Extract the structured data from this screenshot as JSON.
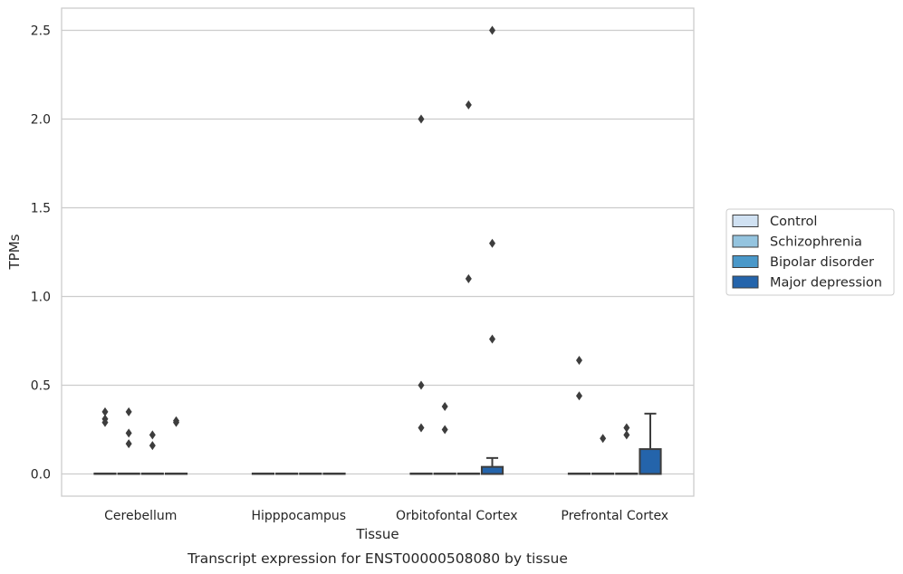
{
  "chart_data": {
    "type": "box",
    "caption": "Transcript expression for ENST00000508080 by tissue",
    "xlabel": "Tissue",
    "ylabel": "TPMs",
    "ylim": [
      -0.12,
      2.63
    ],
    "yticks": [
      0.0,
      0.5,
      1.0,
      1.5,
      2.0,
      2.5
    ],
    "ytick_labels": [
      "0.0",
      "0.5",
      "1.0",
      "1.5",
      "2.0",
      "2.5"
    ],
    "grid": "horizontal",
    "legend_placement": "right",
    "categories": [
      "Cerebellum",
      "Hipppocampus",
      "Orbitofontal Cortex",
      "Prefrontal Cortex"
    ],
    "series": [
      {
        "name": "Control",
        "color": "#d0e1f2"
      },
      {
        "name": "Schizophrenia",
        "color": "#94c4df"
      },
      {
        "name": "Bipolar disorder",
        "color": "#4a98c9"
      },
      {
        "name": "Major depression",
        "color": "#2464ab"
      }
    ],
    "boxes": [
      {
        "category": "Cerebellum",
        "series": "Control",
        "q1": 0,
        "median": 0,
        "q3": 0,
        "whisker_low": 0,
        "whisker_high": 0,
        "outliers": [
          0.35,
          0.31,
          0.29
        ]
      },
      {
        "category": "Cerebellum",
        "series": "Schizophrenia",
        "q1": 0,
        "median": 0,
        "q3": 0,
        "whisker_low": 0,
        "whisker_high": 0,
        "outliers": [
          0.35,
          0.23,
          0.17
        ]
      },
      {
        "category": "Cerebellum",
        "series": "Bipolar disorder",
        "q1": 0,
        "median": 0,
        "q3": 0,
        "whisker_low": 0,
        "whisker_high": 0,
        "outliers": [
          0.22,
          0.16
        ]
      },
      {
        "category": "Cerebellum",
        "series": "Major depression",
        "q1": 0,
        "median": 0,
        "q3": 0,
        "whisker_low": 0,
        "whisker_high": 0,
        "outliers": [
          0.3,
          0.29
        ]
      },
      {
        "category": "Hipppocampus",
        "series": "Control",
        "q1": 0,
        "median": 0,
        "q3": 0,
        "whisker_low": 0,
        "whisker_high": 0,
        "outliers": []
      },
      {
        "category": "Hipppocampus",
        "series": "Schizophrenia",
        "q1": 0,
        "median": 0,
        "q3": 0,
        "whisker_low": 0,
        "whisker_high": 0,
        "outliers": []
      },
      {
        "category": "Hipppocampus",
        "series": "Bipolar disorder",
        "q1": 0,
        "median": 0,
        "q3": 0,
        "whisker_low": 0,
        "whisker_high": 0,
        "outliers": []
      },
      {
        "category": "Hipppocampus",
        "series": "Major depression",
        "q1": 0,
        "median": 0,
        "q3": 0,
        "whisker_low": 0,
        "whisker_high": 0,
        "outliers": []
      },
      {
        "category": "Orbitofontal Cortex",
        "series": "Control",
        "q1": 0,
        "median": 0,
        "q3": 0,
        "whisker_low": 0,
        "whisker_high": 0,
        "outliers": [
          2.0,
          0.5,
          0.26
        ]
      },
      {
        "category": "Orbitofontal Cortex",
        "series": "Schizophrenia",
        "q1": 0,
        "median": 0,
        "q3": 0,
        "whisker_low": 0,
        "whisker_high": 0,
        "outliers": [
          0.38,
          0.25
        ]
      },
      {
        "category": "Orbitofontal Cortex",
        "series": "Bipolar disorder",
        "q1": 0,
        "median": 0,
        "q3": 0,
        "whisker_low": 0,
        "whisker_high": 0,
        "outliers": [
          2.08,
          1.1
        ]
      },
      {
        "category": "Orbitofontal Cortex",
        "series": "Major depression",
        "q1": 0,
        "median": 0,
        "q3": 0.04,
        "whisker_low": 0,
        "whisker_high": 0.09,
        "outliers": [
          2.5,
          1.3,
          0.76
        ]
      },
      {
        "category": "Prefrontal Cortex",
        "series": "Control",
        "q1": 0,
        "median": 0,
        "q3": 0,
        "whisker_low": 0,
        "whisker_high": 0,
        "outliers": [
          0.64,
          0.44
        ]
      },
      {
        "category": "Prefrontal Cortex",
        "series": "Schizophrenia",
        "q1": 0,
        "median": 0,
        "q3": 0,
        "whisker_low": 0,
        "whisker_high": 0,
        "outliers": [
          0.2
        ]
      },
      {
        "category": "Prefrontal Cortex",
        "series": "Bipolar disorder",
        "q1": 0,
        "median": 0,
        "q3": 0,
        "whisker_low": 0,
        "whisker_high": 0,
        "outliers": [
          0.26,
          0.22
        ]
      },
      {
        "category": "Prefrontal Cortex",
        "series": "Major depression",
        "q1": 0,
        "median": 0,
        "q3": 0.14,
        "whisker_low": 0,
        "whisker_high": 0.34,
        "outliers": []
      }
    ]
  }
}
